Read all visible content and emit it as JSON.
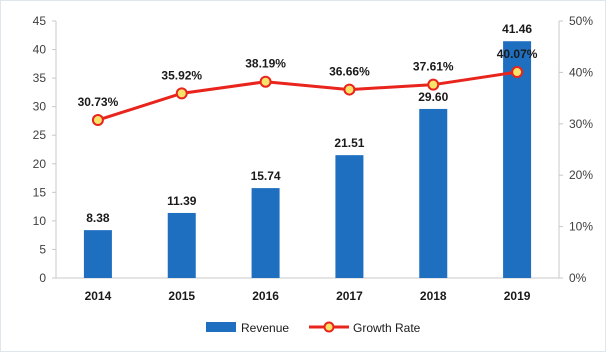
{
  "chart_data": {
    "type": "bar+line",
    "categories": [
      "2014",
      "2015",
      "2016",
      "2017",
      "2018",
      "2019"
    ],
    "series": [
      {
        "name": "Revenue",
        "type": "bar",
        "axis": "left",
        "values": [
          8.38,
          11.39,
          15.74,
          21.51,
          29.6,
          41.46
        ],
        "labels": [
          "8.38",
          "11.39",
          "15.74",
          "21.51",
          "29.60",
          "41.46"
        ]
      },
      {
        "name": "Growth Rate",
        "type": "line",
        "axis": "right",
        "values": [
          30.73,
          35.92,
          38.19,
          36.66,
          37.61,
          40.07
        ],
        "labels": [
          "30.73%",
          "35.92%",
          "38.19%",
          "36.66%",
          "37.61%",
          "40.07%"
        ]
      }
    ],
    "y_left": {
      "range": [
        0,
        45
      ],
      "ticks": [
        "0",
        "5",
        "10",
        "15",
        "20",
        "25",
        "30",
        "35",
        "40",
        "45"
      ]
    },
    "y_right": {
      "range": [
        0,
        50
      ],
      "ticks": [
        "0%",
        "10%",
        "20%",
        "30%",
        "40%",
        "50%"
      ]
    },
    "grid": false,
    "legend_position": "bottom",
    "colors": {
      "bar": "#1f6fc0",
      "line": "#e8241c",
      "marker_fill": "#f7e36a",
      "axis": "#c8c8c8"
    }
  }
}
